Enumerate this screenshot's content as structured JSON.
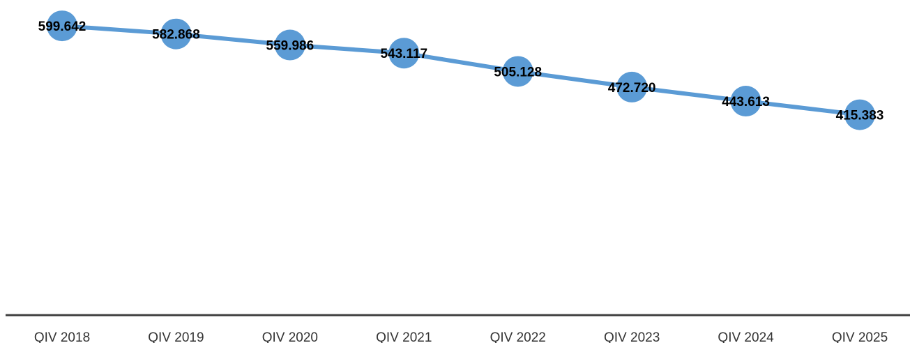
{
  "chart_data": {
    "type": "line",
    "categories": [
      "QIV 2018",
      "QIV 2019",
      "QIV 2020",
      "QIV 2021",
      "QIV 2022",
      "QIV 2023",
      "QIV 2024",
      "QIV 2025"
    ],
    "values": [
      599642,
      582868,
      559986,
      543117,
      505128,
      472720,
      443613,
      415383
    ],
    "value_labels": [
      "599.642",
      "582.868",
      "559.986",
      "543.117",
      "505.128",
      "472.720",
      "443.613",
      "415.383"
    ],
    "color": "#5b9bd5",
    "ylim": [
      0,
      620000
    ]
  }
}
